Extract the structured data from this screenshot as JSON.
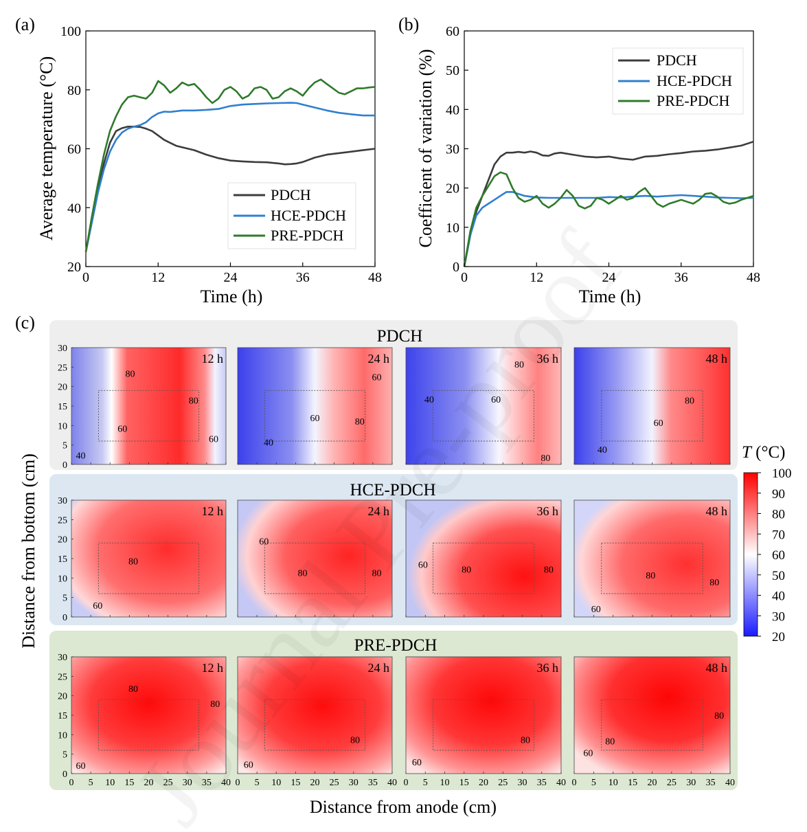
{
  "watermark": "Journal Pre-proof",
  "chart_data": [
    {
      "panel": "(a)",
      "type": "line",
      "xlabel": "Time (h)",
      "ylabel": "Average temperature (°C)",
      "xlim": [
        0,
        48
      ],
      "ylim": [
        20,
        100
      ],
      "xticks": [
        0,
        12,
        24,
        36,
        48
      ],
      "yticks": [
        20,
        40,
        60,
        80,
        100
      ],
      "legend_position": "bottom-right",
      "series": [
        {
          "name": "PDCH",
          "color": "#3c3c3c",
          "x": [
            0,
            1,
            2,
            3,
            4,
            5,
            6,
            7,
            8,
            9,
            10,
            11,
            12,
            13,
            14,
            15,
            16,
            17,
            18,
            20,
            22,
            24,
            26,
            28,
            30,
            32,
            33,
            34,
            35,
            36,
            38,
            40,
            42,
            44,
            46,
            48
          ],
          "y": [
            25,
            36,
            46,
            55,
            62,
            66,
            67,
            67.5,
            67.5,
            67.4,
            66.8,
            66,
            64.5,
            63,
            62,
            61,
            60.5,
            60,
            59.5,
            58,
            56.8,
            56,
            55.7,
            55.5,
            55.4,
            55,
            54.7,
            54.8,
            55,
            55.5,
            57,
            58,
            58.5,
            59,
            59.5,
            60
          ]
        },
        {
          "name": "HCE-PDCH",
          "color": "#2f7fd0",
          "x": [
            0,
            1,
            2,
            3,
            4,
            5,
            6,
            7,
            8,
            9,
            10,
            11,
            12,
            13,
            14,
            16,
            18,
            20,
            22,
            24,
            26,
            28,
            30,
            32,
            34,
            35,
            36,
            38,
            40,
            42,
            44,
            46,
            48
          ],
          "y": [
            25,
            35,
            45,
            53,
            59,
            63,
            65.5,
            66.8,
            67.5,
            68,
            69,
            70.8,
            72,
            72.6,
            72.5,
            73,
            73,
            73.2,
            73.5,
            74.5,
            75,
            75.2,
            75.4,
            75.5,
            75.6,
            75.5,
            75,
            74,
            73,
            72.2,
            71.7,
            71.3,
            71.3
          ]
        },
        {
          "name": "PRE-PDCH",
          "color": "#2e7a2a",
          "x": [
            0,
            1,
            2,
            3,
            4,
            5,
            6,
            7,
            8,
            9,
            10,
            11,
            12,
            13,
            14,
            15,
            16,
            17,
            18,
            19,
            20,
            21,
            22,
            23,
            24,
            25,
            26,
            27,
            28,
            29,
            30,
            31,
            32,
            33,
            34,
            35,
            36,
            37,
            38,
            39,
            40,
            41,
            42,
            43,
            44,
            45,
            46,
            47,
            48
          ],
          "y": [
            25,
            37,
            48,
            58,
            66,
            71,
            75,
            77.5,
            78,
            77.5,
            77,
            79,
            83,
            81.5,
            79,
            80.5,
            82.5,
            81.5,
            82,
            80,
            77.5,
            75.5,
            77,
            80,
            81,
            79.5,
            77,
            78,
            80.5,
            81,
            80,
            77,
            77.5,
            79.5,
            80.5,
            79.5,
            78,
            80.5,
            82.5,
            83.5,
            82,
            80.5,
            79,
            78.5,
            79.5,
            80.5,
            80.5,
            80.8,
            81
          ]
        }
      ]
    },
    {
      "panel": "(b)",
      "type": "line",
      "xlabel": "Time (h)",
      "ylabel": "Coefficient of variation (%)",
      "xlim": [
        0,
        48
      ],
      "ylim": [
        0,
        60
      ],
      "xticks": [
        0,
        12,
        24,
        36,
        48
      ],
      "yticks": [
        0,
        10,
        20,
        30,
        40,
        50,
        60
      ],
      "legend_position": "top-right",
      "series": [
        {
          "name": "PDCH",
          "color": "#3c3c3c",
          "x": [
            0,
            1,
            2,
            3,
            4,
            5,
            6,
            7,
            8,
            9,
            10,
            11,
            12,
            13,
            14,
            15,
            16,
            18,
            20,
            22,
            24,
            26,
            28,
            30,
            32,
            34,
            36,
            38,
            40,
            42,
            44,
            46,
            48
          ],
          "y": [
            0,
            8,
            14,
            18,
            22,
            26,
            28,
            29,
            29,
            29.2,
            29,
            29.3,
            29,
            28.3,
            28.2,
            28.8,
            29,
            28.5,
            28,
            27.8,
            28,
            27.5,
            27.2,
            28,
            28.2,
            28.6,
            28.9,
            29.3,
            29.5,
            29.8,
            30.3,
            30.8,
            31.8
          ]
        },
        {
          "name": "HCE-PDCH",
          "color": "#2f7fd0",
          "x": [
            0,
            1,
            2,
            3,
            4,
            5,
            6,
            7,
            8,
            9,
            10,
            12,
            14,
            16,
            18,
            20,
            22,
            24,
            26,
            28,
            30,
            32,
            34,
            36,
            38,
            40,
            42,
            44,
            46,
            48
          ],
          "y": [
            0,
            8,
            13,
            15,
            16,
            17,
            18,
            19,
            19,
            18.5,
            18,
            17.6,
            17.5,
            17.5,
            17.5,
            17.5,
            17.5,
            17.7,
            17.6,
            17.8,
            18,
            17.8,
            18,
            18.2,
            18,
            17.8,
            17.6,
            17.5,
            17.4,
            17.5
          ]
        },
        {
          "name": "PRE-PDCH",
          "color": "#2e7a2a",
          "x": [
            0,
            1,
            2,
            3,
            4,
            5,
            6,
            7,
            8,
            9,
            10,
            11,
            12,
            13,
            14,
            15,
            16,
            17,
            18,
            19,
            20,
            21,
            22,
            23,
            24,
            25,
            26,
            27,
            28,
            29,
            30,
            31,
            32,
            33,
            34,
            35,
            36,
            37,
            38,
            39,
            40,
            41,
            42,
            43,
            44,
            45,
            46,
            47,
            48
          ],
          "y": [
            0,
            9,
            15,
            18,
            20.5,
            23,
            24,
            23.5,
            20,
            17.5,
            16.5,
            17,
            18,
            16,
            15,
            16,
            17.5,
            19.5,
            18,
            15.5,
            14.8,
            15.5,
            17.5,
            17,
            16,
            17,
            18,
            17,
            17.5,
            19,
            20,
            18,
            16,
            15.2,
            16,
            16.5,
            17,
            16.5,
            16,
            17,
            18.5,
            18.7,
            17.8,
            16.5,
            16,
            16.3,
            17,
            17.5,
            18
          ]
        }
      ]
    },
    {
      "panel": "(c)",
      "type": "heatmap",
      "xlabel": "Distance from anode (cm)",
      "ylabel": "Distance from bottom (cm)",
      "xlim": [
        0,
        40
      ],
      "ylim": [
        0,
        30
      ],
      "xticks": [
        0,
        5,
        10,
        15,
        20,
        25,
        30,
        35,
        40
      ],
      "yticks": [
        0,
        5,
        10,
        15,
        20,
        25,
        30
      ],
      "colorbar": {
        "label": "T (°C)",
        "label_var": "T",
        "label_unit": " (°C)",
        "min": 20,
        "max": 100,
        "ticks": [
          20,
          30,
          40,
          50,
          60,
          70,
          80,
          90,
          100
        ]
      },
      "rows": [
        {
          "name": "PDCH",
          "panels": [
            {
              "time": "12 h",
              "contour_labels": [
                "80",
                "80",
                "60",
                "60",
                "40"
              ]
            },
            {
              "time": "24 h",
              "contour_labels": [
                "60",
                "60",
                "80",
                "40"
              ]
            },
            {
              "time": "36 h",
              "contour_labels": [
                "80",
                "40",
                "60",
                "80"
              ]
            },
            {
              "time": "48 h",
              "contour_labels": [
                "80",
                "60",
                "40"
              ]
            }
          ]
        },
        {
          "name": "HCE-PDCH",
          "panels": [
            {
              "time": "12 h",
              "contour_labels": [
                "80",
                "60"
              ]
            },
            {
              "time": "24 h",
              "contour_labels": [
                "60",
                "80",
                "80"
              ]
            },
            {
              "time": "36 h",
              "contour_labels": [
                "60",
                "80",
                "80"
              ]
            },
            {
              "time": "48 h",
              "contour_labels": [
                "80",
                "80",
                "60"
              ]
            }
          ]
        },
        {
          "name": "PRE-PDCH",
          "panels": [
            {
              "time": "12 h",
              "contour_labels": [
                "80",
                "80",
                "60"
              ]
            },
            {
              "time": "24 h",
              "contour_labels": [
                "80",
                "60"
              ]
            },
            {
              "time": "36 h",
              "contour_labels": [
                "80",
                "60"
              ]
            },
            {
              "time": "48 h",
              "contour_labels": [
                "80",
                "80",
                "60"
              ]
            }
          ]
        }
      ]
    }
  ]
}
